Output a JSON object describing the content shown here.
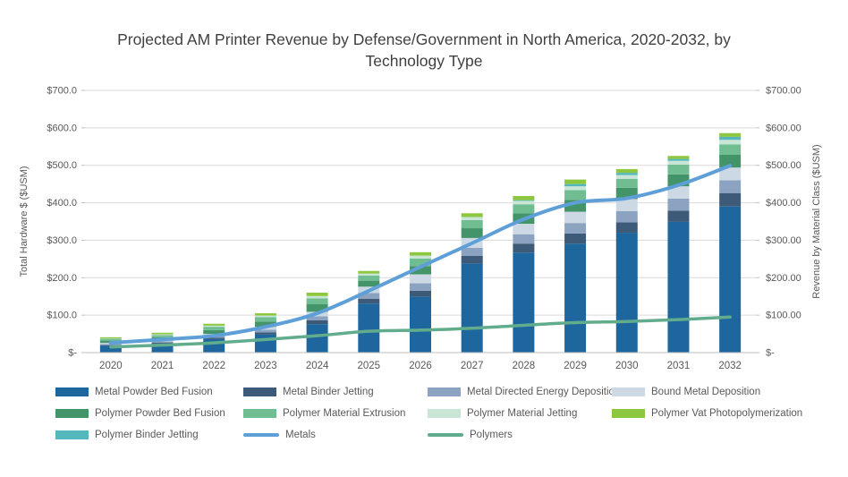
{
  "title": "Projected AM Printer Revenue by Defense/Government in North America, 2020-2032, by Technology Type",
  "axes": {
    "left_title": "Total Hardware $ ($USM)",
    "right_title": "Revenue by Material Class ($USM)",
    "left_ticks": [
      "$-",
      "$100.0",
      "$200.0",
      "$300.0",
      "$400.0",
      "$500.0",
      "$600.0",
      "$700.0"
    ],
    "right_ticks": [
      "$-",
      "$100.00",
      "$200.00",
      "$300.00",
      "$400.00",
      "$500.00",
      "$600.00",
      "$700.00"
    ]
  },
  "chart_data": {
    "type": "bar",
    "subtype": "stacked-column-with-lines",
    "title": "Projected AM Printer Revenue by Defense/Government in North America, 2020-2032, by Technology Type",
    "xlabel": "",
    "ylabel": "Total Hardware $ ($USM)",
    "ylabel_right": "Revenue by Material Class ($USM)",
    "ylim": [
      0,
      700
    ],
    "tick_step": 100,
    "grid": true,
    "legend_position": "bottom",
    "categories": [
      "2020",
      "2021",
      "2022",
      "2023",
      "2024",
      "2025",
      "2026",
      "2027",
      "2028",
      "2029",
      "2030",
      "2031",
      "2032"
    ],
    "series": [
      {
        "name": "Metal Powder Bed Fusion",
        "color": "#1e679e",
        "values": [
          18,
          24,
          36,
          48,
          76,
          131,
          149,
          238,
          267,
          291,
          320,
          349,
          390
        ]
      },
      {
        "name": "Metal Binder Jetting",
        "color": "#3d5a78",
        "values": [
          2,
          3,
          4,
          6,
          10,
          13,
          16,
          20,
          24,
          27,
          28,
          30,
          36
        ]
      },
      {
        "name": "Metal Directed Energy Deposition",
        "color": "#8ba3c0",
        "values": [
          3,
          3,
          5,
          7,
          11,
          15,
          20,
          22,
          25,
          28,
          30,
          32,
          34
        ]
      },
      {
        "name": "Bound Metal Deposition",
        "color": "#ccd9e5",
        "values": [
          3,
          4,
          5,
          8,
          12,
          17,
          24,
          26,
          28,
          30,
          32,
          33,
          34
        ]
      },
      {
        "name": "Polymer Powder Bed Fusion",
        "color": "#449469",
        "values": [
          6,
          7,
          10,
          14,
          20,
          16,
          22,
          26,
          28,
          32,
          30,
          32,
          34
        ]
      },
      {
        "name": "Polymer Material Extrusion",
        "color": "#71bd92",
        "values": [
          5,
          6,
          9,
          12,
          16,
          14,
          20,
          22,
          24,
          26,
          24,
          26,
          28
        ]
      },
      {
        "name": "Polymer Material Jetting",
        "color": "#c9e5d6",
        "values": [
          1,
          2,
          3,
          4,
          6,
          5,
          8,
          8,
          9,
          10,
          10,
          10,
          12
        ]
      },
      {
        "name": "Polymer Binder Jetting",
        "color": "#53b7bc",
        "values": [
          0,
          0,
          0,
          0,
          0,
          0,
          0,
          0,
          2,
          6,
          6,
          5,
          8
        ]
      },
      {
        "name": "Polymer Vat Photopolymerization",
        "color": "#8dc63f",
        "values": [
          3,
          4,
          5,
          6,
          9,
          7,
          9,
          10,
          11,
          12,
          10,
          8,
          10
        ]
      }
    ],
    "line_series": [
      {
        "name": "Metals",
        "color": "#5f9fd8",
        "width": 4,
        "values": [
          26,
          35,
          45,
          69,
          105,
          165,
          229,
          292,
          356,
          400,
          412,
          447,
          499
        ]
      },
      {
        "name": "Polymers",
        "color": "#62ac8e",
        "width": 3.5,
        "values": [
          15,
          20,
          26,
          35,
          45,
          57,
          60,
          65,
          73,
          80,
          83,
          88,
          95
        ]
      }
    ]
  },
  "legend": {
    "items": [
      {
        "label": "Metal Powder Bed Fusion",
        "color": "#1e679e",
        "type": "bar"
      },
      {
        "label": "Metal Binder Jetting",
        "color": "#3d5a78",
        "type": "bar"
      },
      {
        "label": "Metal Directed Energy Deposition",
        "color": "#8ba3c0",
        "type": "bar"
      },
      {
        "label": "Bound Metal Deposition",
        "color": "#ccd9e5",
        "type": "bar"
      },
      {
        "label": "Polymer Powder Bed Fusion",
        "color": "#449469",
        "type": "bar"
      },
      {
        "label": "Polymer Material Extrusion",
        "color": "#71bd92",
        "type": "bar"
      },
      {
        "label": "Polymer Material Jetting",
        "color": "#c9e5d6",
        "type": "bar"
      },
      {
        "label": "Polymer Vat Photopolymerization",
        "color": "#8dc63f",
        "type": "bar"
      },
      {
        "label": "Polymer Binder Jetting",
        "color": "#53b7bc",
        "type": "bar"
      },
      {
        "label": "Metals",
        "color": "#5f9fd8",
        "type": "line"
      },
      {
        "label": "Polymers",
        "color": "#62ac8e",
        "type": "line"
      }
    ]
  },
  "style": {
    "grid_color": "#d9d9d9",
    "axis_line_color": "#bfbfbf",
    "tick_text_color": "#595959",
    "title_color": "#404040"
  }
}
